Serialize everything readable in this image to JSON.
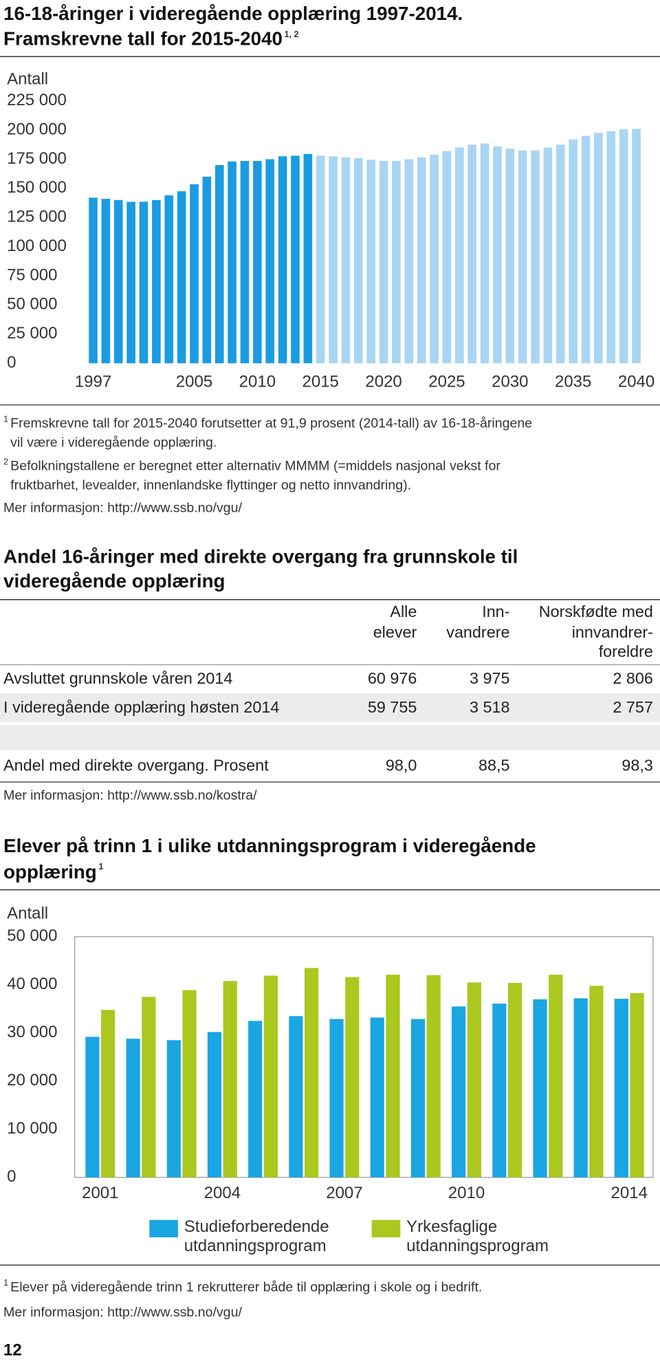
{
  "chart_data": [
    {
      "type": "bar",
      "title": "16-18-åringer i videregående opplæring 1997-2014.",
      "subtitle": "Framskrevne tall for 2015-2040",
      "subtitle_note": "1, 2",
      "y_label": "Antall",
      "categories": [
        "1997",
        null,
        null,
        null,
        null,
        null,
        null,
        null,
        "2005",
        null,
        null,
        null,
        null,
        "2010",
        null,
        null,
        null,
        null,
        "2015",
        null,
        null,
        null,
        null,
        "2020",
        null,
        null,
        null,
        null,
        "2025",
        null,
        null,
        null,
        null,
        "2030",
        null,
        null,
        null,
        null,
        "2035",
        null,
        null,
        null,
        null,
        "2040"
      ],
      "series": [
        {
          "color": "#1a9ce1",
          "values": [
            142000,
            141000,
            140000,
            138500,
            138500,
            140000,
            144000,
            147500,
            153500,
            160000,
            170000,
            173000,
            173500,
            173500,
            175000,
            177500,
            178000,
            179500,
            null,
            null,
            null,
            null,
            null,
            null,
            null,
            null,
            null,
            null,
            null,
            null,
            null,
            null,
            null,
            null,
            null,
            null,
            null,
            null,
            null,
            null,
            null,
            null,
            null,
            null
          ]
        },
        {
          "color": "#a9d5f3",
          "values": [
            null,
            null,
            null,
            null,
            null,
            null,
            null,
            null,
            null,
            null,
            null,
            null,
            null,
            null,
            null,
            null,
            null,
            null,
            178000,
            177500,
            176500,
            176000,
            174500,
            173500,
            173500,
            175000,
            176500,
            179000,
            182000,
            185000,
            187500,
            188500,
            186000,
            184000,
            182500,
            182500,
            185000,
            187500,
            192000,
            195000,
            197500,
            199000,
            200500,
            201000
          ]
        }
      ],
      "ylim": [
        0,
        225000
      ],
      "yticks": [
        0,
        {
          "value": 25000,
          "label": "25 000"
        },
        {
          "value": 50000,
          "label": "50 000"
        },
        {
          "value": 75000,
          "label": "75 000"
        },
        {
          "value": 100000,
          "label": "100 000"
        },
        {
          "value": 125000,
          "label": "125 000"
        },
        {
          "value": 150000,
          "label": "150 000"
        },
        {
          "value": 175000,
          "label": "175 000"
        },
        {
          "value": 200000,
          "label": "200 000"
        },
        {
          "value": 225000,
          "label": "225 000"
        }
      ],
      "grid": false,
      "footnotes": [
        {
          "mark": "1",
          "lines": [
            "Fremskrevne tall for 2015-2040 forutsetter at 91,9 prosent (2014-tall) av 16-18-åringene",
            "vil være i videregående opplæring."
          ]
        },
        {
          "mark": "2",
          "lines": [
            "Befolkningstallene er beregnet etter alternativ MMMM (=middels nasjonal vekst for",
            "fruktbarhet, levealder, innenlandske flyttinger og netto innvandring)."
          ]
        }
      ],
      "more_info": "Mer informasjon: http://www.ssb.no/vgu/"
    },
    {
      "type": "bar",
      "title": "Elever på trinn 1 i ulike utdanningsprogram i videregående",
      "title_line2": "opplæring",
      "title_note": "1",
      "y_label": "Antall",
      "categories": [
        "2001",
        null,
        null,
        "2004",
        null,
        null,
        "2007",
        null,
        null,
        "2010",
        null,
        null,
        null,
        "2014"
      ],
      "series": [
        {
          "name": "Studieforberedende utdanningsprogram",
          "color": "#1aa6e2",
          "values": [
            29200,
            28800,
            28500,
            30200,
            32500,
            33500,
            32900,
            33200,
            32900,
            35500,
            36100,
            37000,
            37200,
            37100
          ]
        },
        {
          "name": "Yrkesfaglige utdanningsprogram",
          "color": "#aac81e",
          "values": [
            34800,
            37500,
            38900,
            40800,
            41900,
            43500,
            41600,
            42100,
            42000,
            40500,
            40400,
            42100,
            39800,
            38300
          ]
        }
      ],
      "ylim": [
        0,
        50000
      ],
      "yticks": [
        0,
        {
          "value": 10000,
          "label": "10 000"
        },
        {
          "value": 20000,
          "label": "20 000"
        },
        {
          "value": 30000,
          "label": "30 000"
        },
        {
          "value": 40000,
          "label": "40 000"
        },
        {
          "value": 50000,
          "label": "50 000"
        }
      ],
      "grid": false,
      "legend": "bottom",
      "footnotes": [
        {
          "mark": "1",
          "lines": [
            "Elever på videregående trinn 1 rekrutterer både til opplæring i skole og i bedrift."
          ]
        }
      ],
      "more_info": "Mer informasjon: http://www.ssb.no/vgu/"
    }
  ],
  "table": {
    "title": [
      "Andel 16-åringer med direkte overgang fra grunnskole til",
      "videregående opplæring"
    ],
    "columns": [
      [
        "Alle",
        "elever"
      ],
      [
        "Inn-",
        "vandrere"
      ],
      [
        "Norskfødte med",
        "innvandrer-",
        "foreldre"
      ]
    ],
    "rows": [
      [
        "Avsluttet grunnskole våren 2014",
        "60 976",
        "3 975",
        "2 806"
      ],
      [
        "I videregående opplæring høsten 2014",
        "59 755",
        "3 518",
        "2 757"
      ],
      [
        "Andel med direkte overgang. Prosent",
        "98,0",
        "88,5",
        "98,3"
      ]
    ],
    "more_info": "Mer informasjon: http://www.ssb.no/kostra/"
  },
  "page_number": "12"
}
